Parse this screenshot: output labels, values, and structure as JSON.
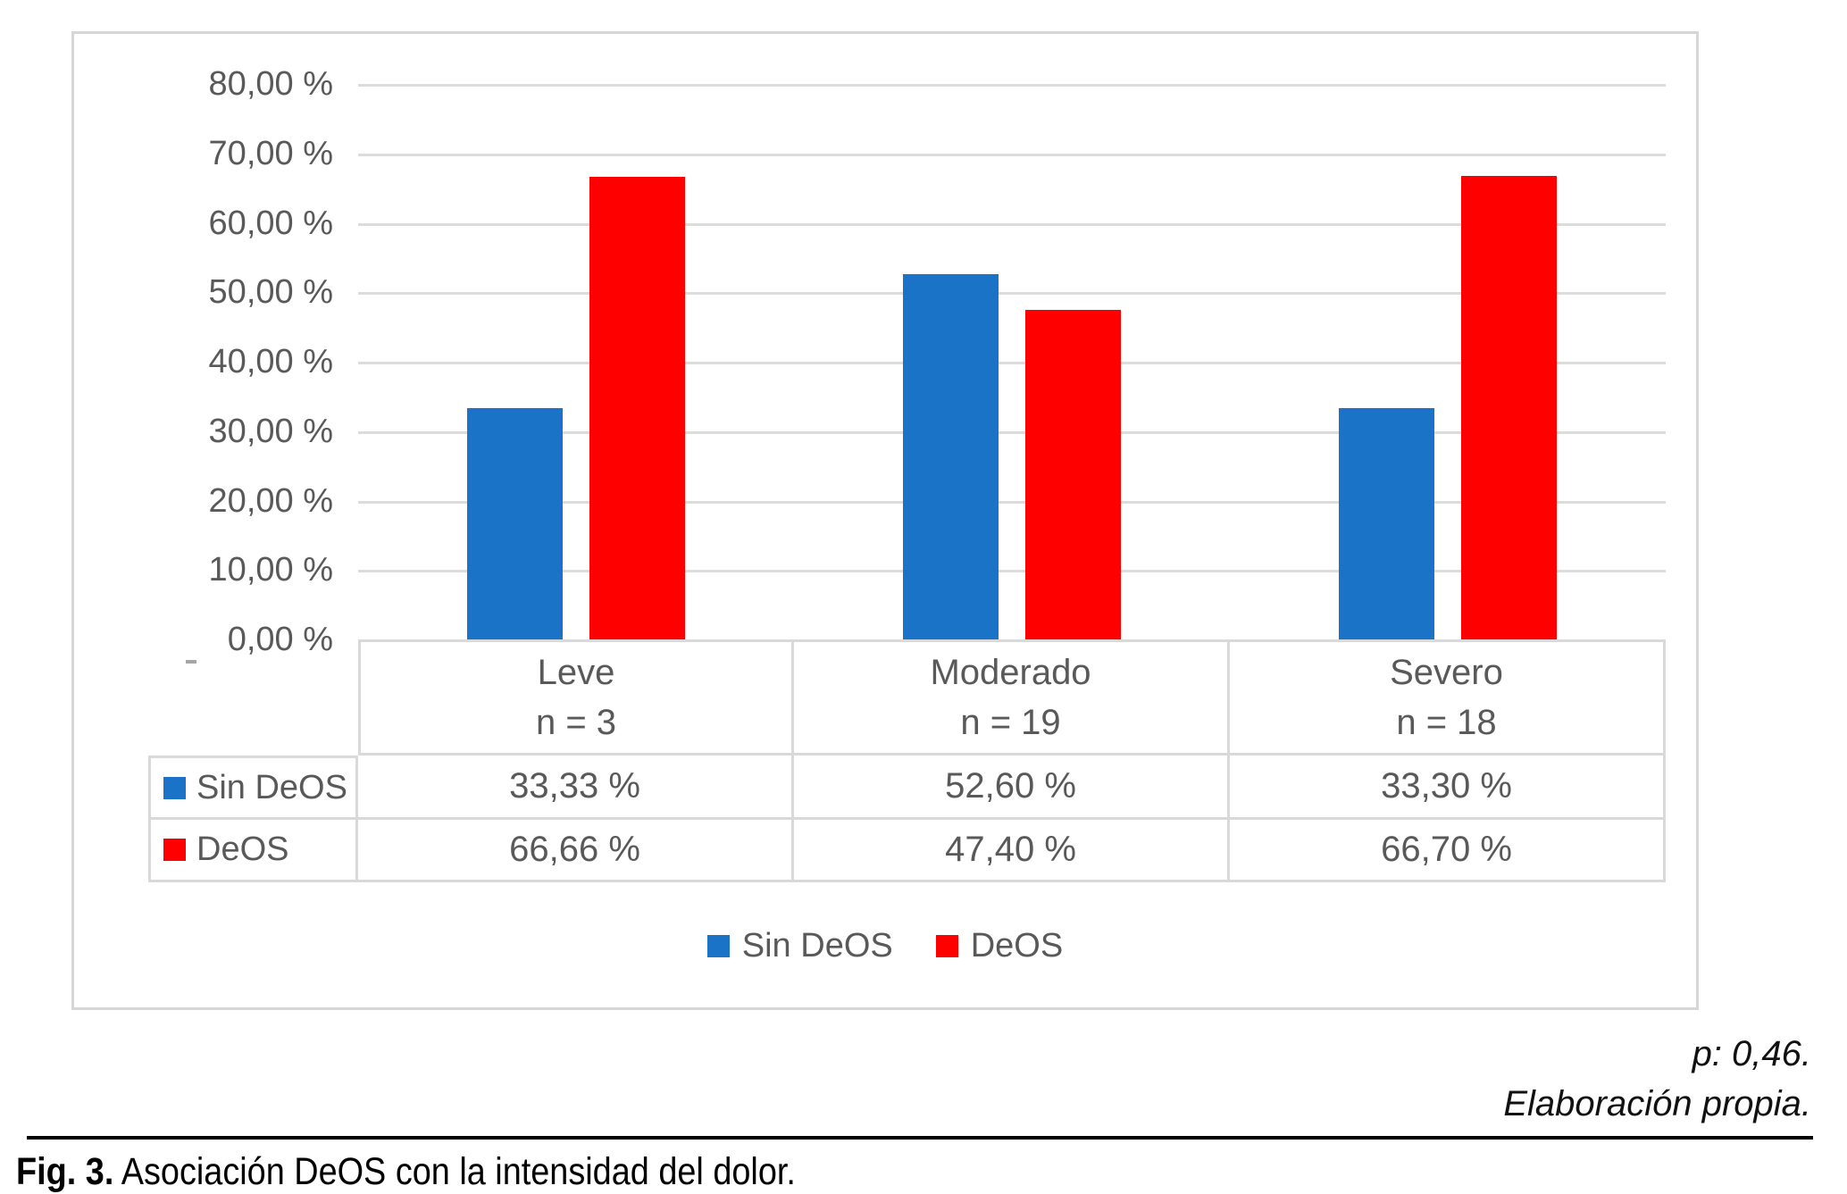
{
  "colors": {
    "series_blue": "#1b73c8",
    "series_red": "#ff0000",
    "grid": "#dcdcdc",
    "table_border": "#d9d9d9",
    "text_gray": "#595959"
  },
  "chart_data": {
    "type": "bar",
    "title": "",
    "categories": [
      "Leve",
      "Moderado",
      "Severo"
    ],
    "category_counts": [
      "n = 3",
      "n = 19",
      "n = 18"
    ],
    "series": [
      {
        "name": "Sin DeOS",
        "color_key": "series_blue",
        "values": [
          33.33,
          52.6,
          33.3
        ],
        "value_labels": [
          "33,33 %",
          "52,60 %",
          "33,30 %"
        ]
      },
      {
        "name": "DeOS",
        "color_key": "series_red",
        "values": [
          66.66,
          47.4,
          66.7
        ],
        "value_labels": [
          "66,66 %",
          "47,40 %",
          "66,70 %"
        ]
      }
    ],
    "y_axis": {
      "min": 0,
      "max": 80,
      "tick_step": 10,
      "tick_labels": [
        "80,00 %",
        "70,00 %",
        "60,00 %",
        "50,00 %",
        "40,00 %",
        "30,00 %",
        "20,00 %",
        "10,00 %",
        "0,00 %"
      ]
    },
    "grid": true,
    "legend_position": "bottom",
    "data_table_shown": true
  },
  "notes": {
    "p_value": "p: 0,46.",
    "source": "Elaboración propia."
  },
  "caption": {
    "label": "Fig. 3.",
    "text": " Asociación DeOS con la intensidad del dolor."
  }
}
